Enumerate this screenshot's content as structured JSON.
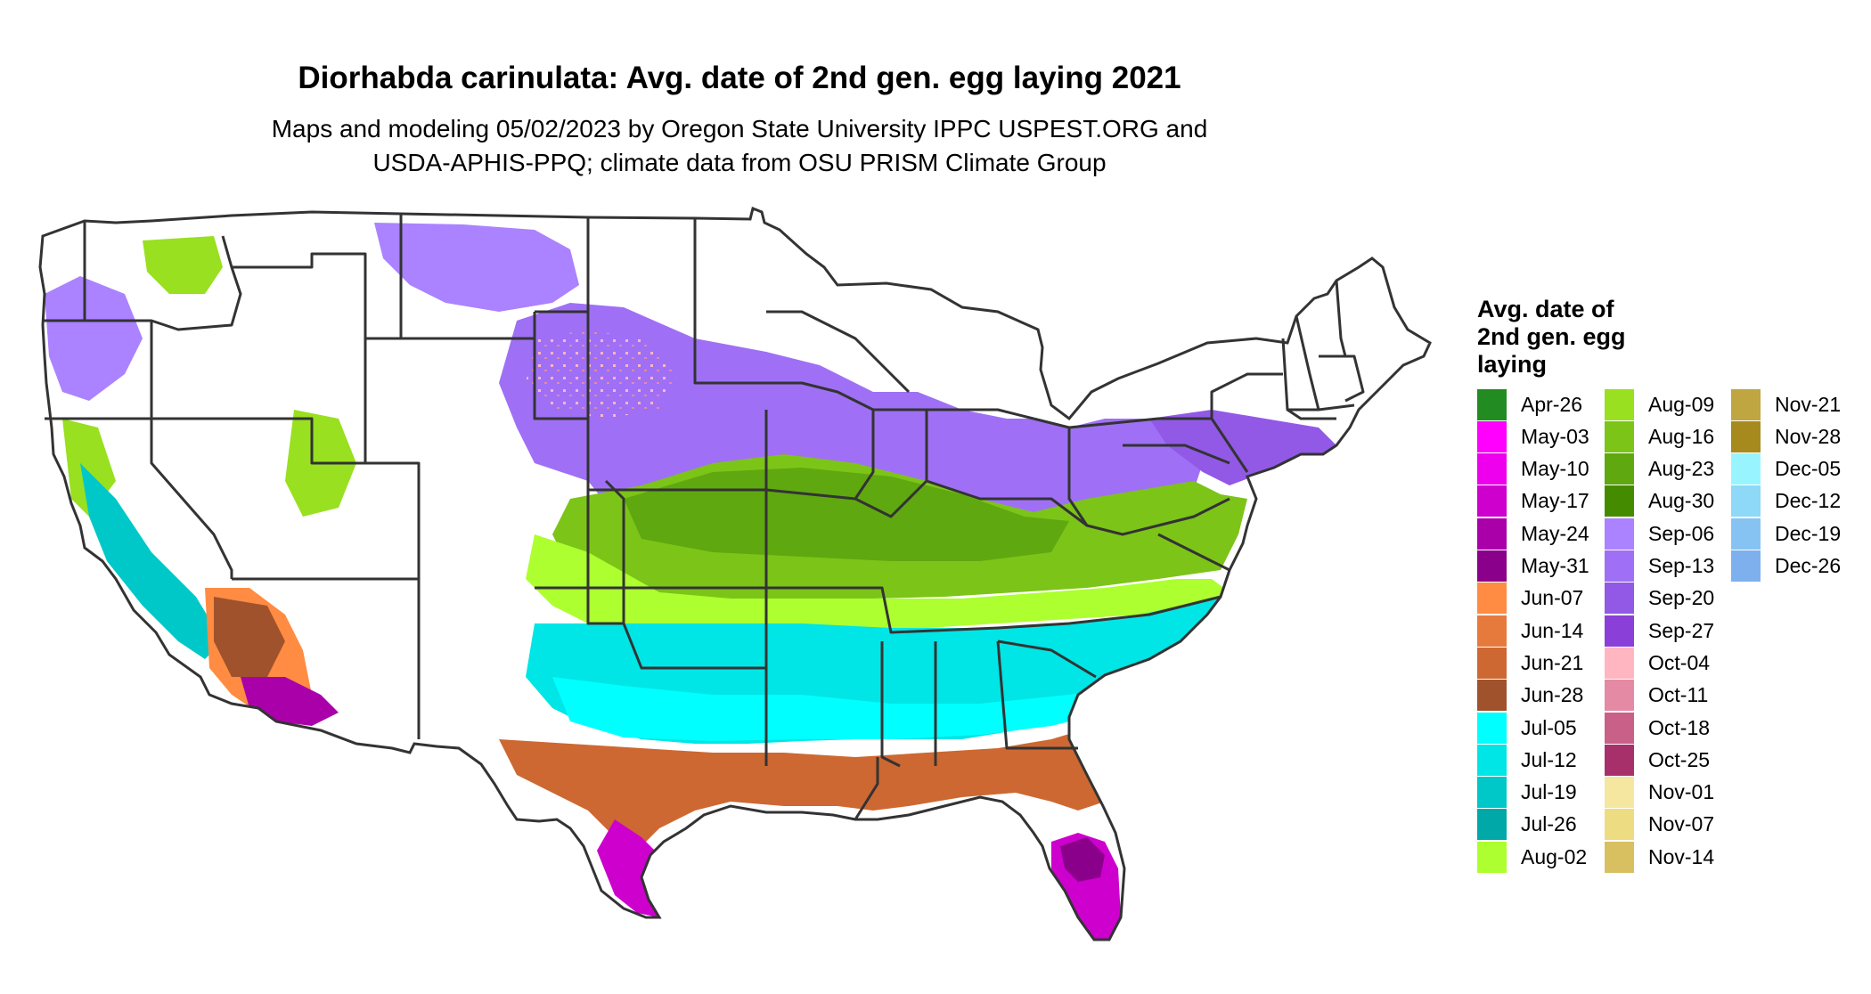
{
  "title": "Diorhabda carinulata: Avg. date of 2nd gen. egg laying 2021",
  "subtitle_lines": [
    "Maps and modeling 05/02/2023 by Oregon State University IPPC USPEST.ORG and",
    "USDA-APHIS-PPQ; climate data from OSU PRISM Climate Group"
  ],
  "legend": {
    "title_lines": [
      "Avg. date of",
      "2nd gen. egg",
      "laying"
    ],
    "items": [
      {
        "label": "Apr-26",
        "color": "#228B22"
      },
      {
        "label": "May-03",
        "color": "#FF00FF"
      },
      {
        "label": "May-10",
        "color": "#EE00EE"
      },
      {
        "label": "May-17",
        "color": "#CD00CD"
      },
      {
        "label": "May-24",
        "color": "#AA00AA"
      },
      {
        "label": "May-31",
        "color": "#8B008B"
      },
      {
        "label": "Jun-07",
        "color": "#FF8C42"
      },
      {
        "label": "Jun-14",
        "color": "#E67A3C"
      },
      {
        "label": "Jun-21",
        "color": "#CD6832"
      },
      {
        "label": "Jun-28",
        "color": "#A0522D"
      },
      {
        "label": "Jul-05",
        "color": "#00FFFF"
      },
      {
        "label": "Jul-12",
        "color": "#00E5E5"
      },
      {
        "label": "Jul-19",
        "color": "#00C8C8"
      },
      {
        "label": "Jul-26",
        "color": "#00A8A8"
      },
      {
        "label": "Aug-02",
        "color": "#ADFF2F"
      },
      {
        "label": "Aug-09",
        "color": "#98E020"
      },
      {
        "label": "Aug-16",
        "color": "#7CC418"
      },
      {
        "label": "Aug-23",
        "color": "#5FA810"
      },
      {
        "label": "Aug-30",
        "color": "#458B00"
      },
      {
        "label": "Sep-06",
        "color": "#AB82FF"
      },
      {
        "label": "Sep-13",
        "color": "#9F70F5"
      },
      {
        "label": "Sep-20",
        "color": "#9259E6"
      },
      {
        "label": "Sep-27",
        "color": "#8A3FD8"
      },
      {
        "label": "Oct-04",
        "color": "#FFB6C1"
      },
      {
        "label": "Oct-11",
        "color": "#E48AA4"
      },
      {
        "label": "Oct-18",
        "color": "#C86088"
      },
      {
        "label": "Oct-25",
        "color": "#A8306A"
      },
      {
        "label": "Nov-01",
        "color": "#F5E6A0"
      },
      {
        "label": "Nov-07",
        "color": "#EEDC82"
      },
      {
        "label": "Nov-14",
        "color": "#D8C060"
      },
      {
        "label": "Nov-21",
        "color": "#BFA640"
      },
      {
        "label": "Nov-28",
        "color": "#A68A1E"
      },
      {
        "label": "Dec-05",
        "color": "#98F5FF"
      },
      {
        "label": "Dec-12",
        "color": "#8ED8F8"
      },
      {
        "label": "Dec-19",
        "color": "#87C3F2"
      },
      {
        "label": "Dec-26",
        "color": "#7EB0EE"
      }
    ]
  }
}
